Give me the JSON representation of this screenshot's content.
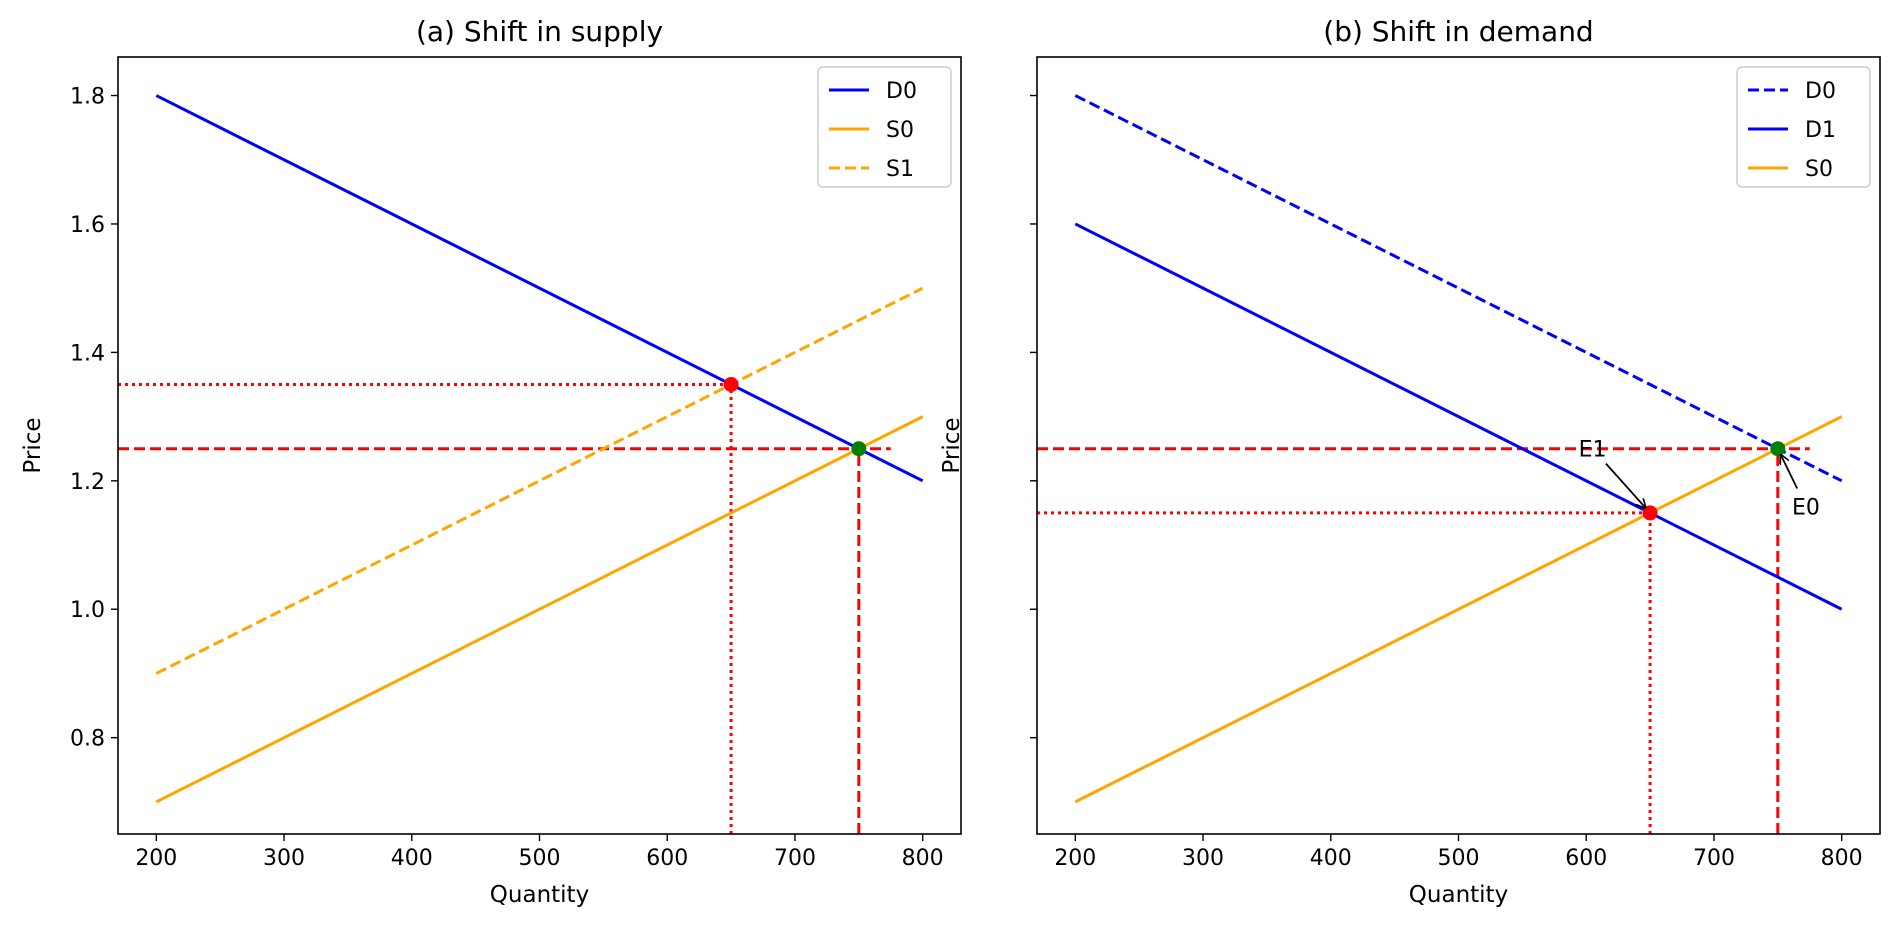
{
  "chart_data": [
    {
      "type": "line",
      "title": "(a) Shift in supply",
      "xlabel": "Quantity",
      "ylabel": "Price",
      "xlim": [
        170,
        830
      ],
      "ylim": [
        0.65,
        1.86
      ],
      "xticks": [
        200,
        300,
        400,
        500,
        600,
        700,
        800
      ],
      "yticks": [
        0.8,
        1.0,
        1.2,
        1.4,
        1.6,
        1.8
      ],
      "xtick_labels": [
        "200",
        "300",
        "400",
        "500",
        "600",
        "700",
        "800"
      ],
      "ytick_labels": [
        "0.8",
        "1.0",
        "1.2",
        "1.4",
        "1.6",
        "1.8"
      ],
      "show_ytick_labels": true,
      "grid": false,
      "legend": "top-right",
      "series": [
        {
          "name": "D0",
          "x": [
            200,
            800
          ],
          "y": [
            1.8,
            1.2
          ],
          "color": "#0000ff",
          "dash": "solid"
        },
        {
          "name": "S0",
          "x": [
            200,
            800
          ],
          "y": [
            0.7,
            1.3
          ],
          "color": "#ffa500",
          "dash": "solid"
        },
        {
          "name": "S1",
          "x": [
            200,
            800
          ],
          "y": [
            0.9,
            1.5
          ],
          "color": "#ffa500",
          "dash": "dashed"
        }
      ],
      "guides": [
        {
          "x": [
            170,
            650
          ],
          "y": [
            1.35,
            1.35
          ],
          "color": "#ff0000",
          "dash": "dotted"
        },
        {
          "x": [
            650,
            650
          ],
          "y": [
            0.65,
            1.35
          ],
          "color": "#ff0000",
          "dash": "dotted"
        },
        {
          "x": [
            170,
            775
          ],
          "y": [
            1.25,
            1.25
          ],
          "color": "#ff0000",
          "dash": "dashed"
        },
        {
          "x": [
            750,
            750
          ],
          "y": [
            0.65,
            1.25
          ],
          "color": "#ff0000",
          "dash": "dashed"
        }
      ],
      "points": [
        {
          "x": 650,
          "y": 1.35,
          "color": "#ff0000"
        },
        {
          "x": 750,
          "y": 1.25,
          "color": "#008000"
        }
      ],
      "annotations": []
    },
    {
      "type": "line",
      "title": "(b) Shift in demand",
      "xlabel": "Quantity",
      "ylabel": "Price",
      "xlim": [
        170,
        830
      ],
      "ylim": [
        0.65,
        1.86
      ],
      "xticks": [
        200,
        300,
        400,
        500,
        600,
        700,
        800
      ],
      "yticks": [
        0.8,
        1.0,
        1.2,
        1.4,
        1.6,
        1.8
      ],
      "xtick_labels": [
        "200",
        "300",
        "400",
        "500",
        "600",
        "700",
        "800"
      ],
      "ytick_labels": [
        "0.8",
        "1.0",
        "1.2",
        "1.4",
        "1.6",
        "1.8"
      ],
      "show_ytick_labels": false,
      "grid": false,
      "legend": "top-right",
      "series": [
        {
          "name": "D0",
          "x": [
            200,
            800
          ],
          "y": [
            1.8,
            1.2
          ],
          "color": "#0000ff",
          "dash": "dashed"
        },
        {
          "name": "D1",
          "x": [
            200,
            800
          ],
          "y": [
            1.6,
            1.0
          ],
          "color": "#0000ff",
          "dash": "solid"
        },
        {
          "name": "S0",
          "x": [
            200,
            800
          ],
          "y": [
            0.7,
            1.3
          ],
          "color": "#ffa500",
          "dash": "solid"
        }
      ],
      "guides": [
        {
          "x": [
            170,
            650
          ],
          "y": [
            1.15,
            1.15
          ],
          "color": "#ff0000",
          "dash": "dotted"
        },
        {
          "x": [
            650,
            650
          ],
          "y": [
            0.65,
            1.15
          ],
          "color": "#ff0000",
          "dash": "dotted"
        },
        {
          "x": [
            170,
            775
          ],
          "y": [
            1.25,
            1.25
          ],
          "color": "#ff0000",
          "dash": "dashed"
        },
        {
          "x": [
            750,
            750
          ],
          "y": [
            0.65,
            1.25
          ],
          "color": "#ff0000",
          "dash": "dashed"
        }
      ],
      "points": [
        {
          "x": 650,
          "y": 1.15,
          "color": "#ff0000"
        },
        {
          "x": 750,
          "y": 1.25,
          "color": "#008000"
        }
      ],
      "annotations": [
        {
          "text": "E1",
          "x": 605,
          "y": 1.25,
          "target_x": 650,
          "target_y": 1.15
        },
        {
          "text": "E0",
          "x": 772,
          "y": 1.16,
          "target_x": 750,
          "target_y": 1.25
        }
      ]
    }
  ]
}
